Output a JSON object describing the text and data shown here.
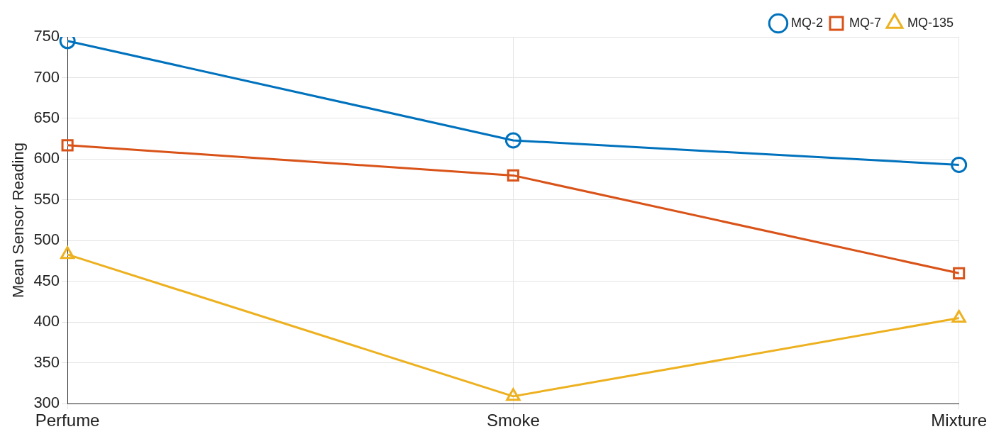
{
  "chart_data": {
    "type": "line",
    "ylabel": "Mean Sensor Reading",
    "categories": [
      "Perfume",
      "Smoke",
      "Mixture"
    ],
    "series": [
      {
        "name": "MQ-2",
        "color": "#0072bd",
        "marker": "circle",
        "values": [
          745,
          623,
          593
        ]
      },
      {
        "name": "MQ-7",
        "color": "#d95319",
        "marker": "square",
        "values": [
          617,
          580,
          460
        ]
      },
      {
        "name": "MQ-135",
        "color": "#edb120",
        "marker": "triangle",
        "values": [
          483,
          309,
          405
        ]
      }
    ],
    "ylim": [
      300,
      750
    ],
    "yticks": [
      300,
      350,
      400,
      450,
      500,
      550,
      600,
      650,
      700,
      750
    ],
    "grid": true,
    "legend": "top right"
  }
}
